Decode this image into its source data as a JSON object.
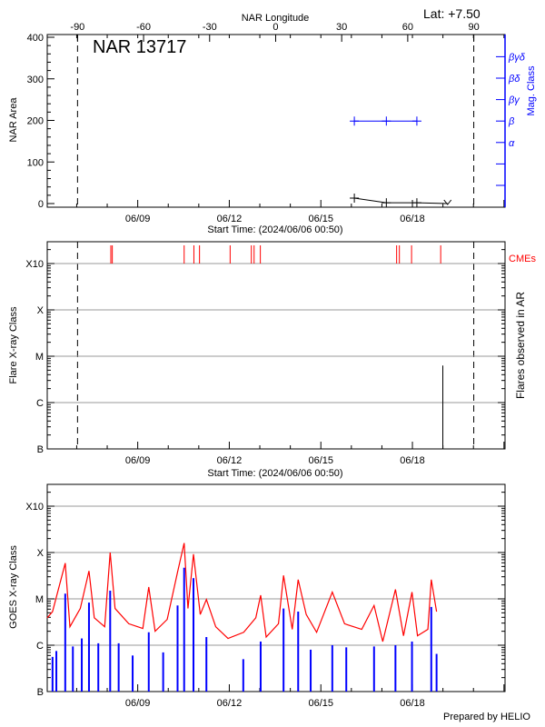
{
  "chart_data": [
    {
      "type": "line",
      "title": "NAR 13717",
      "corner_label": "Lat:  +7.50",
      "xlabel": "Start Time: (2024/06/06 00:50)",
      "x_tick_labels": [
        "06/09",
        "06/12",
        "06/15",
        "06/18"
      ],
      "xlim": [
        "2024-06-06 00:50",
        "2024-06-21 00:50"
      ],
      "top_axis": {
        "label": "NAR Longitude",
        "ticks": [
          -90,
          -60,
          -30,
          0,
          30,
          60,
          90
        ]
      },
      "ylabel": "NAR Area",
      "ylim": [
        0,
        400
      ],
      "y_ticks": [
        0,
        100,
        200,
        300,
        400
      ],
      "limb_lines": [
        "2024-06-07 00:40",
        "2024-06-20 00:15"
      ],
      "area_series": {
        "color": "#000000",
        "x": [
          "2024-06-16 02:20",
          "2024-06-17 03:30",
          "2024-06-18 03:30",
          "2024-06-19 03:40"
        ],
        "y": [
          13,
          2,
          2,
          0
        ]
      },
      "right_axis": {
        "label": "Mag. Class",
        "color": "#0000ff",
        "classes": [
          "α",
          "β",
          "βγ",
          "βδ",
          "βγδ"
        ]
      },
      "mag_series": {
        "color": "#0000ff",
        "x": [
          "2024-06-16 02:20",
          "2024-06-17 03:30",
          "2024-06-18 03:30"
        ],
        "y": [
          "β",
          "β",
          "β"
        ]
      }
    },
    {
      "type": "bar",
      "xlabel": "Start Time: (2024/06/06 00:50)",
      "x_tick_labels": [
        "06/09",
        "06/12",
        "06/15",
        "06/18"
      ],
      "ylabel": "Flare X-ray Class",
      "right_label": "Flares observed in AR",
      "y_tick_labels": [
        "B",
        "C",
        "M",
        "X",
        "X10"
      ],
      "scale": "log",
      "grid": true,
      "cme_label": "CMEs",
      "cme_color": "#ff0000",
      "cmes": [
        "2024-06-08 02:50",
        "2024-06-08 04:00",
        "2024-06-10 12:30",
        "2024-06-10 20:10",
        "2024-06-11 00:35",
        "2024-06-12 00:40",
        "2024-06-12 17:20",
        "2024-06-12 19:30",
        "2024-06-13 00:25",
        "2024-06-17 11:35",
        "2024-06-17 13:45",
        "2024-06-17 23:20",
        "2024-06-18 22:15"
      ],
      "flares": [
        {
          "time": "2024-06-18 23:55",
          "class": "C6.3"
        }
      ],
      "limb_lines": [
        "2024-06-07 00:40",
        "2024-06-20 00:15"
      ]
    },
    {
      "type": "line",
      "x_tick_labels": [
        "06/09",
        "06/12",
        "06/15",
        "06/18"
      ],
      "ylabel": "GOES X-ray Class",
      "y_tick_labels": [
        "B",
        "C",
        "M",
        "X",
        "X10"
      ],
      "scale": "log",
      "grid": true,
      "series": [
        {
          "color": "#ff0000",
          "x": [
            "2024-06-06 00:50",
            "2024-06-06 05:00",
            "2024-06-06 15:00",
            "2024-06-06 18:40",
            "2024-06-07 02:50",
            "2024-06-07 09:40",
            "2024-06-07 13:50",
            "2024-06-07 22:00",
            "2024-06-08 02:20",
            "2024-06-08 06:10",
            "2024-06-08 17:00",
            "2024-06-09 04:00",
            "2024-06-09 08:40",
            "2024-06-09 13:40",
            "2024-06-09 23:10",
            "2024-06-10 07:20",
            "2024-06-10 12:30",
            "2024-06-10 15:30",
            "2024-06-10 19:50",
            "2024-06-11 01:10",
            "2024-06-11 06:00",
            "2024-06-11 13:20",
            "2024-06-11 23:00",
            "2024-06-12 11:20",
            "2024-06-12 20:50",
            "2024-06-13 00:40",
            "2024-06-13 05:00",
            "2024-06-13 14:40",
            "2024-06-13 18:40",
            "2024-06-14 01:30",
            "2024-06-14 06:10",
            "2024-06-14 12:30",
            "2024-06-14 20:40",
            "2024-06-15 09:00",
            "2024-06-15 18:40",
            "2024-06-16 08:10",
            "2024-06-16 17:50",
            "2024-06-17 00:40",
            "2024-06-17 10:40",
            "2024-06-17 17:00",
            "2024-06-17 23:40",
            "2024-06-18 04:00",
            "2024-06-18 12:10",
            "2024-06-18 14:50",
            "2024-06-18 19:00"
          ],
          "y": [
            "C3.9",
            "C5.3",
            "M5.9",
            "C2.5",
            "C6.2",
            "M4.0",
            "C3.9",
            "C2.5",
            "X1.0",
            "C6.2",
            "C2.9",
            "C2.3",
            "M1.8",
            "C2.0",
            "C3.6",
            "M3.8",
            "X1.6",
            "C6.2",
            "M9.2",
            "C4.6",
            "C9.7",
            "C2.5",
            "C1.4",
            "C1.9",
            "C3.9",
            "M1.2",
            "C1.5",
            "C2.9",
            "M3.2",
            "C2.2",
            "M2.6",
            "C4.6",
            "C1.9",
            "M1.4",
            "C2.9",
            "C2.2",
            "C7.2",
            "C1.2",
            "M1.6",
            "C1.6",
            "M1.4",
            "C1.6",
            "C2.2",
            "M2.6",
            "C5.3"
          ]
        },
        {
          "color": "#0000ff",
          "x": [
            "2024-06-06 05:00",
            "2024-06-06 08:00",
            "2024-06-06 15:00",
            "2024-06-06 21:00",
            "2024-06-07 04:00",
            "2024-06-07 09:40",
            "2024-06-07 17:00",
            "2024-06-08 02:20",
            "2024-06-08 09:00",
            "2024-06-08 20:00",
            "2024-06-09 08:40",
            "2024-06-09 20:00",
            "2024-06-10 07:20",
            "2024-06-10 12:30",
            "2024-06-10 19:50",
            "2024-06-11 06:00",
            "2024-06-12 11:00",
            "2024-06-13 00:40",
            "2024-06-13 18:40",
            "2024-06-14 06:10",
            "2024-06-14 16:00",
            "2024-06-15 09:00",
            "2024-06-15 20:00",
            "2024-06-16 17:50",
            "2024-06-17 10:40",
            "2024-06-17 23:40",
            "2024-06-18 14:50",
            "2024-06-18 19:00"
          ],
          "y": [
            "B5.6",
            "B7.5",
            "M1.3",
            "B9.4",
            "C1.4",
            "C8.3",
            "C1.1",
            "M1.5",
            "C1.1",
            "B6.0",
            "C1.9",
            "B7.0",
            "C7.2",
            "M4.7",
            "M2.8",
            "C1.5",
            "B5.0",
            "C1.2",
            "C6.2",
            "C5.3",
            "B8.0",
            "C1.0",
            "B9.0",
            "B9.4",
            "C1.0",
            "C1.2",
            "C6.7",
            "B6.5"
          ]
        }
      ]
    }
  ],
  "footer": {
    "credit": "Prepared by HELIO"
  }
}
